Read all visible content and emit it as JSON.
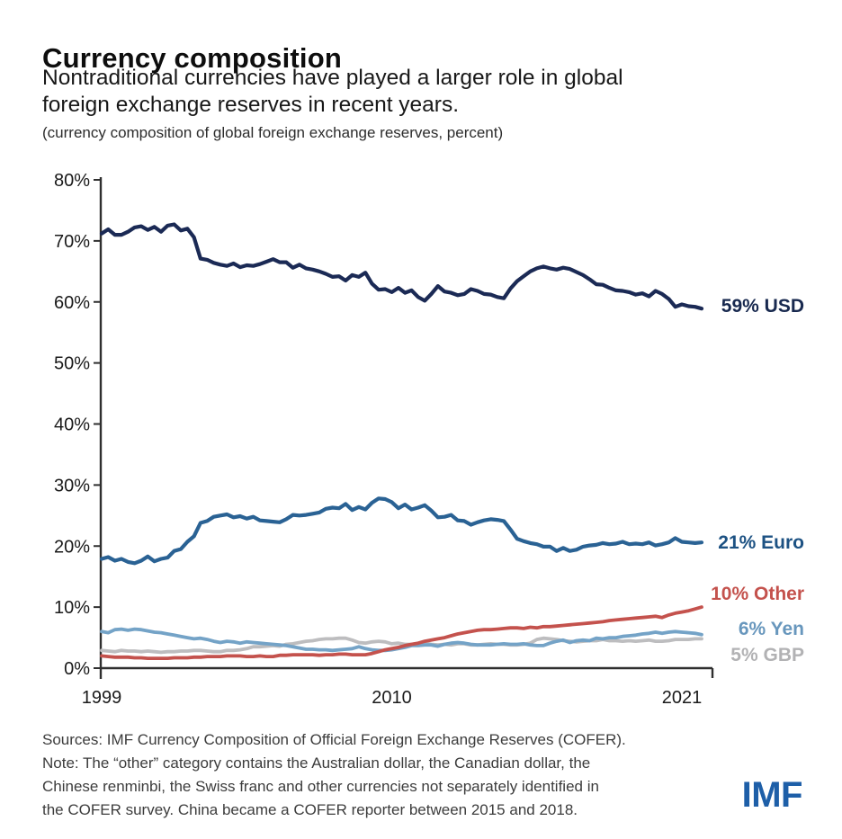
{
  "header": {
    "title": "Currency composition",
    "subtitle_lines": [
      "Nontraditional currencies have played a larger role in global",
      "foreign exchange reserves in recent years."
    ],
    "caption": "(currency composition of global foreign exchange reserves, percent)"
  },
  "chart_data": {
    "type": "line",
    "x_description": "Quarterly, 1999Q1 to 2021Q4",
    "xticks": [
      {
        "label": "1999",
        "quarter_index": 0
      },
      {
        "label": "2010",
        "quarter_index": 44
      },
      {
        "label": "2021",
        "quarter_index": 88
      }
    ],
    "yticks": [
      {
        "label": "0%",
        "value": 0
      },
      {
        "label": "10%",
        "value": 10
      },
      {
        "label": "20%",
        "value": 20
      },
      {
        "label": "30%",
        "value": 30
      },
      {
        "label": "40%",
        "value": 40
      },
      {
        "label": "50%",
        "value": 50
      },
      {
        "label": "60%",
        "value": 60
      },
      {
        "label": "70%",
        "value": 70
      },
      {
        "label": "80%",
        "value": 80
      }
    ],
    "ylim": [
      0,
      80
    ],
    "grid": false,
    "legend_position": "end-of-line labels, right side",
    "axis_color": "#2f2f2f",
    "series": [
      {
        "id": "usd",
        "name": "USD",
        "label": "59% USD",
        "color": "#1b2a55",
        "label_color": "#18294f",
        "width": 4.2,
        "values": [
          71.2,
          71.9,
          71.0,
          71.0,
          71.5,
          72.2,
          72.4,
          71.8,
          72.3,
          71.5,
          72.5,
          72.7,
          71.7,
          72.0,
          70.6,
          67.1,
          66.9,
          66.4,
          66.1,
          65.9,
          66.3,
          65.7,
          66.0,
          65.9,
          66.2,
          66.6,
          67.0,
          66.5,
          66.5,
          65.6,
          66.1,
          65.5,
          65.3,
          65.0,
          64.6,
          64.1,
          64.2,
          63.5,
          64.4,
          64.1,
          64.8,
          63.0,
          62.0,
          62.1,
          61.6,
          62.3,
          61.5,
          61.9,
          60.8,
          60.2,
          61.3,
          62.6,
          61.7,
          61.5,
          61.1,
          61.3,
          62.1,
          61.8,
          61.3,
          61.2,
          60.8,
          60.6,
          62.2,
          63.4,
          64.2,
          65.0,
          65.5,
          65.8,
          65.5,
          65.3,
          65.6,
          65.4,
          64.9,
          64.4,
          63.7,
          62.9,
          62.8,
          62.3,
          61.9,
          61.8,
          61.6,
          61.2,
          61.4,
          60.9,
          61.8,
          61.3,
          60.5,
          59.2,
          59.6,
          59.3,
          59.2,
          58.9
        ]
      },
      {
        "id": "euro",
        "name": "Euro",
        "label": "21% Euro",
        "color": "#2a6294",
        "label_color": "#1d5283",
        "width": 4.2,
        "values": [
          17.9,
          18.2,
          17.6,
          17.9,
          17.4,
          17.2,
          17.6,
          18.3,
          17.5,
          17.9,
          18.1,
          19.2,
          19.5,
          20.7,
          21.6,
          23.8,
          24.1,
          24.8,
          25.0,
          25.2,
          24.7,
          24.9,
          24.5,
          24.8,
          24.2,
          24.1,
          24.0,
          23.9,
          24.4,
          25.1,
          25.0,
          25.1,
          25.3,
          25.5,
          26.1,
          26.3,
          26.2,
          26.9,
          25.9,
          26.4,
          26.0,
          27.1,
          27.8,
          27.7,
          27.2,
          26.2,
          26.8,
          26.0,
          26.3,
          26.7,
          25.8,
          24.7,
          24.8,
          25.1,
          24.2,
          24.1,
          23.5,
          23.9,
          24.2,
          24.4,
          24.3,
          24.1,
          22.7,
          21.2,
          20.8,
          20.5,
          20.3,
          19.9,
          19.9,
          19.2,
          19.7,
          19.2,
          19.4,
          19.9,
          20.1,
          20.2,
          20.5,
          20.3,
          20.4,
          20.7,
          20.3,
          20.4,
          20.3,
          20.6,
          20.1,
          20.3,
          20.6,
          21.3,
          20.7,
          20.6,
          20.5,
          20.6
        ]
      },
      {
        "id": "other",
        "name": "Other",
        "label": "10% Other",
        "color": "#c4524d",
        "label_color": "#c4524d",
        "width": 3.8,
        "values": [
          2.0,
          1.9,
          1.8,
          1.8,
          1.8,
          1.7,
          1.7,
          1.6,
          1.6,
          1.6,
          1.6,
          1.7,
          1.7,
          1.7,
          1.8,
          1.8,
          1.9,
          1.9,
          1.9,
          2.0,
          2.0,
          2.0,
          1.9,
          1.9,
          2.0,
          1.9,
          1.9,
          2.1,
          2.1,
          2.2,
          2.2,
          2.2,
          2.2,
          2.1,
          2.2,
          2.2,
          2.3,
          2.3,
          2.2,
          2.2,
          2.2,
          2.4,
          2.7,
          3.0,
          3.2,
          3.4,
          3.7,
          3.9,
          4.1,
          4.4,
          4.6,
          4.8,
          5.0,
          5.3,
          5.6,
          5.8,
          6.0,
          6.2,
          6.3,
          6.3,
          6.4,
          6.5,
          6.6,
          6.6,
          6.5,
          6.7,
          6.6,
          6.8,
          6.8,
          6.9,
          7.0,
          7.1,
          7.2,
          7.3,
          7.4,
          7.5,
          7.6,
          7.8,
          7.9,
          8.0,
          8.1,
          8.2,
          8.3,
          8.4,
          8.5,
          8.3,
          8.7,
          9.0,
          9.2,
          9.4,
          9.7,
          10.0
        ]
      },
      {
        "id": "yen",
        "name": "Yen",
        "label": "6% Yen",
        "color": "#74a3c7",
        "label_color": "#6897bd",
        "width": 3.8,
        "values": [
          6.0,
          5.8,
          6.3,
          6.4,
          6.2,
          6.4,
          6.3,
          6.1,
          5.9,
          5.8,
          5.6,
          5.4,
          5.2,
          5.0,
          4.8,
          4.9,
          4.7,
          4.4,
          4.2,
          4.4,
          4.3,
          4.1,
          4.3,
          4.2,
          4.1,
          4.0,
          3.9,
          3.8,
          3.7,
          3.5,
          3.3,
          3.1,
          3.1,
          3.0,
          3.0,
          2.9,
          3.0,
          3.1,
          3.2,
          3.5,
          3.2,
          3.0,
          2.9,
          2.9,
          3.0,
          3.2,
          3.4,
          3.7,
          3.7,
          3.8,
          3.8,
          3.6,
          3.9,
          4.1,
          4.2,
          4.1,
          3.9,
          3.8,
          3.8,
          3.8,
          3.9,
          4.0,
          3.9,
          3.9,
          4.0,
          3.8,
          3.7,
          3.7,
          4.1,
          4.4,
          4.6,
          4.2,
          4.5,
          4.6,
          4.5,
          4.9,
          4.8,
          5.0,
          5.0,
          5.2,
          5.3,
          5.4,
          5.6,
          5.7,
          5.9,
          5.7,
          5.9,
          6.0,
          5.9,
          5.8,
          5.7,
          5.5
        ]
      },
      {
        "id": "gbp",
        "name": "GBP",
        "label": "5% GBP",
        "color": "#bdbdbf",
        "label_color": "#b2b2b4",
        "width": 3.8,
        "values": [
          2.9,
          2.8,
          2.7,
          2.9,
          2.8,
          2.8,
          2.7,
          2.8,
          2.7,
          2.6,
          2.7,
          2.7,
          2.8,
          2.8,
          2.9,
          2.9,
          2.8,
          2.7,
          2.7,
          2.9,
          2.9,
          3.0,
          3.2,
          3.5,
          3.5,
          3.6,
          3.7,
          3.6,
          3.9,
          4.0,
          4.2,
          4.4,
          4.5,
          4.7,
          4.8,
          4.8,
          4.9,
          4.9,
          4.6,
          4.2,
          4.1,
          4.3,
          4.4,
          4.3,
          4.0,
          4.1,
          3.9,
          3.9,
          4.0,
          4.1,
          3.9,
          3.8,
          3.9,
          3.8,
          4.0,
          4.0,
          3.8,
          3.8,
          3.9,
          4.0,
          3.9,
          3.9,
          3.8,
          3.8,
          3.9,
          4.1,
          4.7,
          4.9,
          4.8,
          4.7,
          4.5,
          4.4,
          4.3,
          4.4,
          4.5,
          4.5,
          4.7,
          4.5,
          4.5,
          4.4,
          4.5,
          4.4,
          4.5,
          4.6,
          4.4,
          4.4,
          4.5,
          4.7,
          4.7,
          4.7,
          4.8,
          4.8
        ]
      }
    ]
  },
  "footer": {
    "lines": [
      "Sources: IMF Currency Composition of Official Foreign Exchange Reserves (COFER).",
      "Note: The “other” category contains the Australian dollar, the Canadian dollar, the",
      "Chinese renminbi, the Swiss franc and other currencies not separately identified in",
      "the COFER survey. China became a COFER reporter between 2015 and 2018."
    ],
    "logo_text": "IMF",
    "logo_color": "#1e5fa8"
  }
}
